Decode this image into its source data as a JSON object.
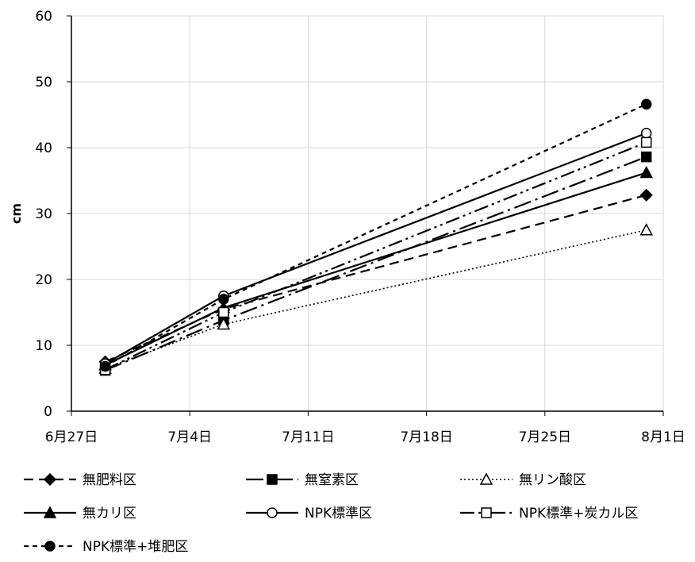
{
  "chart_data": {
    "type": "line",
    "ylabel": "cm",
    "xlabel": "",
    "ylim": [
      0,
      60
    ],
    "y_ticks": [
      "0",
      "10",
      "20",
      "30",
      "40",
      "50",
      "60"
    ],
    "x_ticks": [
      {
        "date": "2018-06-27",
        "label": "6月27日"
      },
      {
        "date": "2018-07-04",
        "label": "7月4日"
      },
      {
        "date": "2018-07-11",
        "label": "7月11日"
      },
      {
        "date": "2018-07-18",
        "label": "7月18日"
      },
      {
        "date": "2018-07-25",
        "label": "7月25日"
      },
      {
        "date": "2018-08-01",
        "label": "8月1日"
      }
    ],
    "xlim": [
      "2018-06-27",
      "2018-08-01"
    ],
    "x": [
      "2018-06-29",
      "2018-07-06",
      "2018-07-31"
    ],
    "grid": "vertical and horizontal gridlines",
    "legend_position": "bottom",
    "series": [
      {
        "name": "無肥料区",
        "values": [
          7.5,
          15.5,
          32.8
        ],
        "marker": "diamond-filled",
        "dash": "dash"
      },
      {
        "name": "無窒素区",
        "values": [
          6.2,
          13.8,
          38.6
        ],
        "marker": "square-filled",
        "dash": "longdash-dot"
      },
      {
        "name": "無リン酸区",
        "values": [
          6.5,
          13.2,
          27.5
        ],
        "marker": "triangle-open",
        "dash": "dot"
      },
      {
        "name": "無カリ区",
        "values": [
          7.0,
          15.7,
          36.2
        ],
        "marker": "triangle-filled",
        "dash": "solid"
      },
      {
        "name": "NPK標準区",
        "values": [
          7.2,
          17.5,
          42.2
        ],
        "marker": "circle-open",
        "dash": "solid"
      },
      {
        "name": "NPK標準+炭カル区",
        "values": [
          6.3,
          15.0,
          40.8
        ],
        "marker": "square-open",
        "dash": "longdash-dot-dot"
      },
      {
        "name": "NPK標準+堆肥区",
        "values": [
          6.8,
          17.0,
          46.6
        ],
        "marker": "circle-filled",
        "dash": "shortdash"
      }
    ]
  }
}
